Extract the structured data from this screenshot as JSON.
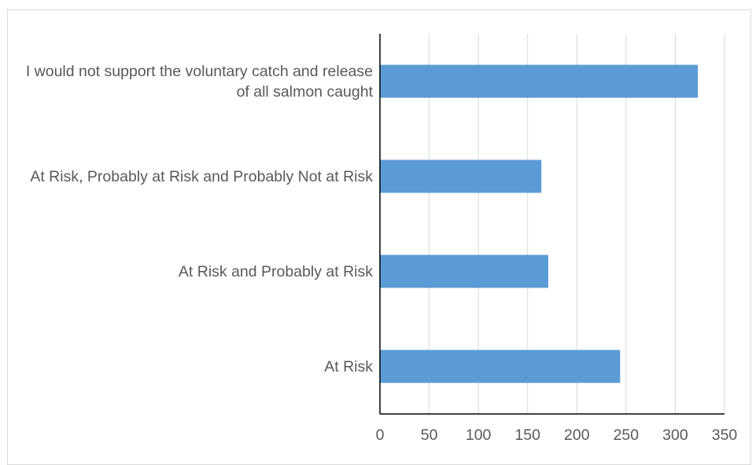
{
  "chart_data": {
    "type": "bar",
    "orientation": "horizontal",
    "categories": [
      "I would not support the voluntary catch and release of all salmon caught",
      "At Risk, Probably at Risk and Probably Not at Risk",
      "At Risk and Probably at Risk",
      "At Risk"
    ],
    "values": [
      323,
      164,
      171,
      244
    ],
    "xlim": [
      0,
      350
    ],
    "xticks": [
      "0",
      "50",
      "100",
      "150",
      "200",
      "250",
      "300",
      "350"
    ],
    "title": "",
    "xlabel": "",
    "ylabel": "",
    "grid": "vertical",
    "legend": "none",
    "bar_color": "#5b9bd5",
    "grid_color": "#d9d9d9",
    "axis_color": "#000000",
    "label_color": "#595959"
  }
}
